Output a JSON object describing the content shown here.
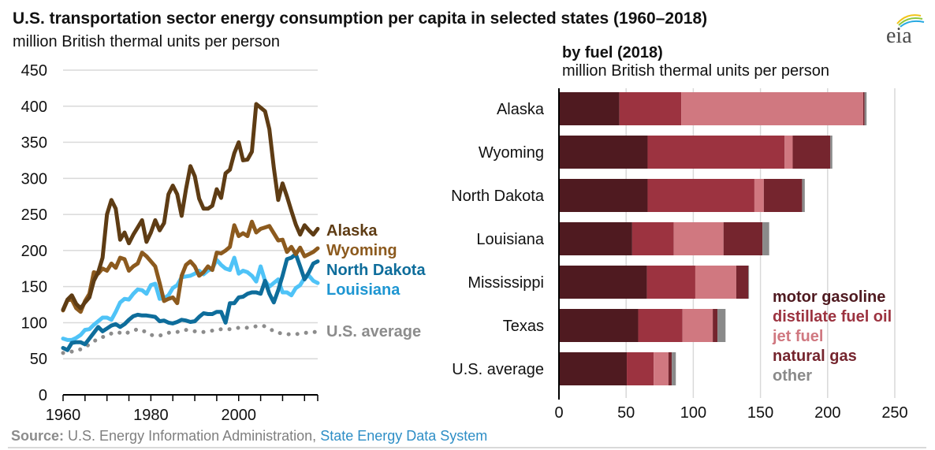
{
  "header": {
    "title": "U.S. transportation sector energy consumption per capita in selected states (1960–2018)",
    "subtitle": "million British thermal units per person",
    "logo": "eia"
  },
  "footer": {
    "source_label": "Source:",
    "source_text": " U.S. Energy Information Administration, ",
    "source_link": "State Energy Data System"
  },
  "chart_data": [
    {
      "type": "line",
      "title": "U.S. transportation sector energy consumption per capita in selected states (1960–2018)",
      "ylabel": "million British thermal units per person",
      "xlabel": "",
      "xlim": [
        1960,
        2018
      ],
      "ylim": [
        0,
        450
      ],
      "yticks": [
        "0",
        "50",
        "100",
        "150",
        "200",
        "250",
        "300",
        "350",
        "400",
        "450"
      ],
      "xticks": [
        "1960",
        "1980",
        "2000"
      ],
      "grid": true,
      "legend": "right (direct labels)",
      "x_start": 1960,
      "series": [
        {
          "name": "Alaska",
          "color": "#5e3c14",
          "style": "solid",
          "values": [
            118,
            132,
            138,
            126,
            120,
            128,
            135,
            158,
            170,
            190,
            250,
            270,
            258,
            215,
            225,
            210,
            222,
            232,
            242,
            212,
            225,
            242,
            228,
            238,
            278,
            290,
            278,
            248,
            285,
            317,
            303,
            272,
            258,
            258,
            262,
            285,
            273,
            307,
            312,
            335,
            350,
            325,
            326,
            337,
            403,
            398,
            393,
            368,
            315,
            270,
            293,
            275,
            255,
            236,
            222,
            235,
            228,
            222,
            230
          ]
        },
        {
          "name": "Wyoming",
          "color": "#8c5a1e",
          "style": "solid",
          "values": [
            117,
            131,
            132,
            120,
            115,
            130,
            140,
            170,
            168,
            175,
            172,
            182,
            176,
            190,
            188,
            172,
            178,
            182,
            197,
            192,
            185,
            178,
            155,
            130,
            133,
            135,
            127,
            165,
            180,
            185,
            178,
            165,
            170,
            178,
            173,
            197,
            196,
            200,
            205,
            235,
            220,
            224,
            220,
            240,
            225,
            230,
            232,
            234,
            224,
            214,
            215,
            198,
            205,
            195,
            204,
            192,
            195,
            198,
            203
          ]
        },
        {
          "name": "North Dakota",
          "color": "#0e6d9b",
          "style": "solid",
          "values": [
            65,
            62,
            72,
            73,
            73,
            70,
            78,
            86,
            94,
            88,
            92,
            96,
            98,
            94,
            98,
            104,
            109,
            111,
            110,
            110,
            109,
            108,
            102,
            103,
            100,
            99,
            101,
            104,
            103,
            101,
            102,
            108,
            113,
            112,
            112,
            115,
            115,
            100,
            127,
            127,
            135,
            136,
            140,
            142,
            142,
            140,
            158,
            140,
            128,
            145,
            165,
            188,
            190,
            195,
            178,
            160,
            170,
            182,
            185
          ]
        },
        {
          "name": "Louisiana",
          "color": "#4fc3f7",
          "style": "solid",
          "values": [
            78,
            76,
            76,
            79,
            83,
            90,
            91,
            97,
            102,
            107,
            107,
            104,
            115,
            128,
            133,
            132,
            140,
            146,
            145,
            140,
            152,
            154,
            133,
            134,
            138,
            148,
            152,
            163,
            164,
            165,
            168,
            172,
            167,
            172,
            175,
            187,
            180,
            175,
            173,
            190,
            168,
            172,
            170,
            165,
            157,
            178,
            158,
            150,
            155,
            160,
            142,
            142,
            138,
            148,
            152,
            162,
            165,
            158,
            155
          ]
        },
        {
          "name": "U.S. average",
          "color": "#8c8c8c",
          "style": "dotted",
          "values": [
            58,
            59,
            60,
            62,
            63,
            66,
            70,
            74,
            78,
            80,
            83,
            85,
            87,
            86,
            84,
            87,
            89,
            91,
            90,
            86,
            83,
            82,
            82,
            84,
            86,
            87,
            87,
            89,
            90,
            89,
            88,
            87,
            87,
            88,
            89,
            90,
            91,
            91,
            91,
            92,
            93,
            93,
            93,
            94,
            95,
            96,
            95,
            92,
            88,
            86,
            85,
            84,
            84,
            84,
            85,
            86,
            86,
            87,
            87
          ]
        }
      ]
    },
    {
      "type": "bar",
      "orientation": "horizontal",
      "stacked": true,
      "title": "by fuel (2018)",
      "xlabel": "million British thermal units per person",
      "xlim": [
        0,
        250
      ],
      "xticks": [
        "0",
        "50",
        "100",
        "150",
        "200",
        "250"
      ],
      "grid": true,
      "legend": "bottom-right",
      "categories": [
        "Alaska",
        "Wyoming",
        "North Dakota",
        "Louisiana",
        "Mississippi",
        "Texas",
        "U.S. average"
      ],
      "series": [
        {
          "name": "motor gasoline",
          "color": "#4f1a20",
          "values": [
            45,
            66,
            66,
            54.5,
            65.5,
            59,
            50.5
          ]
        },
        {
          "name": "distillate fuel oil",
          "color": "#9c3340",
          "values": [
            46,
            102,
            79.5,
            31,
            36,
            33,
            20
          ]
        },
        {
          "name": "jet fuel",
          "color": "#d07880",
          "values": [
            135.5,
            6,
            7,
            37,
            30.5,
            22.5,
            11
          ]
        },
        {
          "name": "natural gas",
          "color": "#75252e",
          "values": [
            1,
            28,
            28.5,
            29,
            9,
            3.5,
            2.5
          ]
        },
        {
          "name": "other",
          "color": "#8a8a8a",
          "values": [
            1.5,
            1.5,
            2,
            5,
            0.5,
            6,
            3
          ]
        }
      ]
    }
  ]
}
